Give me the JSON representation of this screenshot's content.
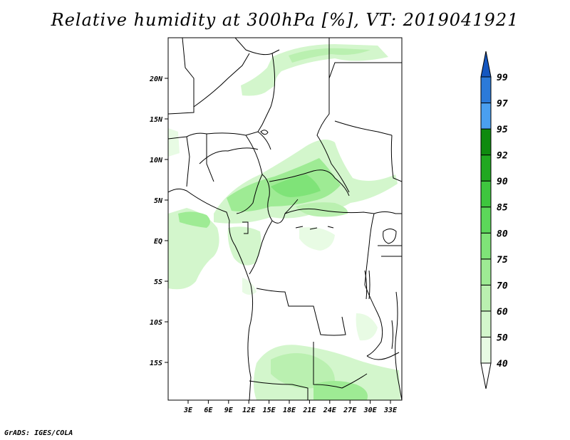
{
  "title": "Relative humidity at 300hPa [%], VT: 2019041921",
  "credit": "GrADS: IGES/COLA",
  "map": {
    "variable": "Relative humidity",
    "level": "300hPa",
    "unit": "%",
    "valid_time": "2019041921",
    "lon_labels": [
      "3E",
      "6E",
      "9E",
      "12E",
      "15E",
      "18E",
      "21E",
      "24E",
      "27E",
      "30E",
      "33E"
    ],
    "lat_labels": [
      "20N",
      "15N",
      "10N",
      "5N",
      "EQ",
      "5S",
      "10S",
      "15S"
    ]
  },
  "legend": {
    "levels": [
      "40",
      "50",
      "60",
      "70",
      "75",
      "80",
      "85",
      "90",
      "92",
      "95",
      "97",
      "99"
    ],
    "colors": [
      "#ffffff",
      "#e8fbe4",
      "#d3f6cc",
      "#baf0b0",
      "#9eeb94",
      "#7fe378",
      "#5cd75a",
      "#3ec63e",
      "#20a820",
      "#0f8a0f",
      "#4a9ff0",
      "#2b7ad9",
      "#1557c0"
    ]
  },
  "colors": {
    "land_line": "#000000",
    "frame": "#000000"
  }
}
